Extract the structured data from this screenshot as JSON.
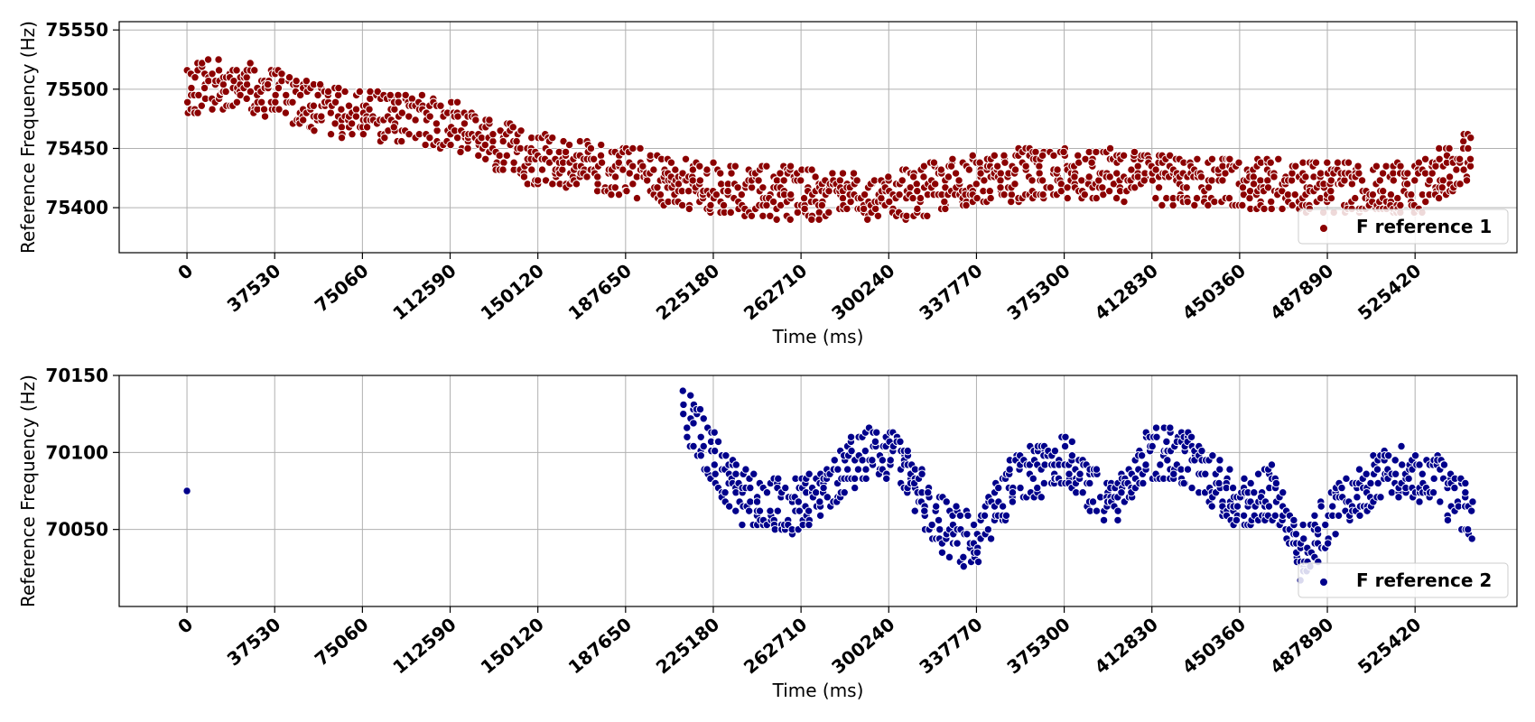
{
  "chart_data": [
    {
      "type": "scatter",
      "xlabel": "Time (ms)",
      "ylabel": "Reference Frequency (Hz)",
      "xlim": [
        -29000,
        569000
      ],
      "ylim": [
        75362,
        75557
      ],
      "xticks": [
        0,
        37530,
        75060,
        112590,
        150120,
        187650,
        225180,
        262710,
        300240,
        337770,
        375300,
        412830,
        450360,
        487890,
        525420
      ],
      "yticks": [
        75400,
        75450,
        75500,
        75550
      ],
      "grid": true,
      "legend_position": "bottom-right",
      "series": [
        {
          "name": "F reference 1",
          "color": "#8b0000",
          "edge_color": "#ffffff",
          "trend_x": [
            0,
            20000,
            45000,
            75000,
            110000,
            150000,
            190000,
            225000,
            262000,
            300000,
            337000,
            375000,
            412000,
            450000,
            487000,
            525000,
            550000
          ],
          "trend_y": [
            75500,
            75505,
            75490,
            75478,
            75470,
            75440,
            75430,
            75415,
            75412,
            75408,
            75425,
            75430,
            75425,
            75420,
            75418,
            75415,
            75445
          ],
          "spread": 22,
          "seed": 11,
          "x_step": 1500
        }
      ]
    },
    {
      "type": "scatter",
      "xlabel": "Time (ms)",
      "ylabel": "Reference Frequency (Hz)",
      "xlim": [
        -29000,
        569000
      ],
      "ylim": [
        70000,
        70150
      ],
      "xticks": [
        0,
        37530,
        75060,
        112590,
        150120,
        187650,
        225180,
        262710,
        300240,
        337770,
        375300,
        412830,
        450360,
        487890,
        525420
      ],
      "yticks": [
        70050,
        70100,
        70150
      ],
      "grid": true,
      "legend_position": "bottom-right",
      "series": [
        {
          "name": "F reference 2",
          "color": "#00008b",
          "edge_color": "#ffffff",
          "isolated_points": [
            [
              0,
              70075
            ]
          ],
          "trend_x": [
            212000,
            225000,
            238000,
            262000,
            290000,
            305000,
            320000,
            337000,
            352000,
            375000,
            395000,
            412000,
            430000,
            450000,
            465000,
            475000,
            490000,
            505000,
            520000,
            535000,
            550000
          ],
          "trend_y": [
            70130,
            70095,
            70070,
            70065,
            70100,
            70095,
            70055,
            70040,
            70080,
            70095,
            70065,
            70100,
            70095,
            70065,
            70075,
            70030,
            70060,
            70080,
            70090,
            70080,
            70060
          ],
          "spread": 18,
          "seed": 23,
          "x_step": 1500
        }
      ]
    }
  ]
}
